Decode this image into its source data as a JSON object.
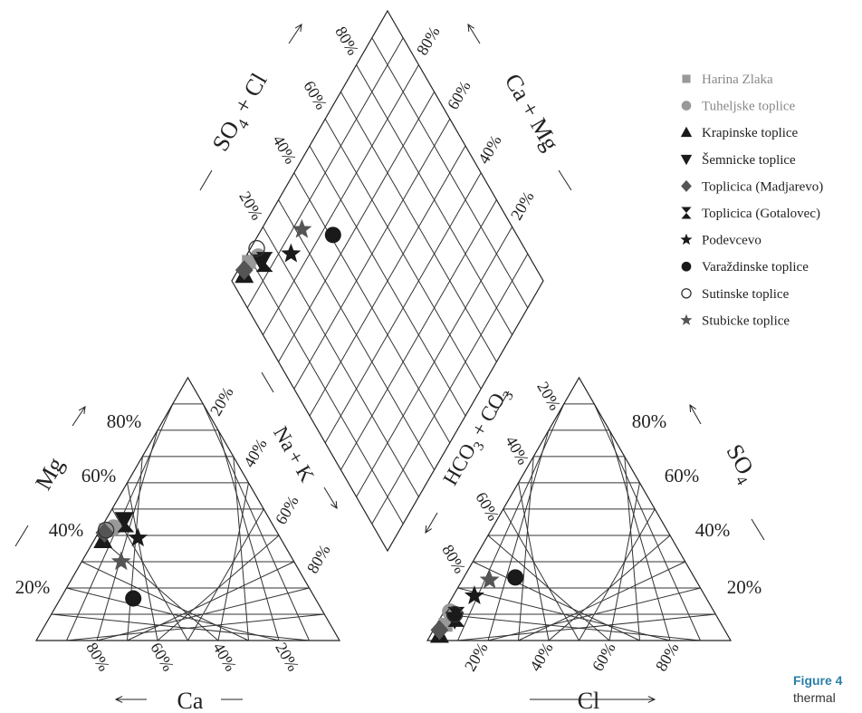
{
  "chart_data": {
    "type": "scatter",
    "title": "",
    "diagram": "Piper trilinear diagram",
    "cation_triangle": {
      "axes": [
        "Mg",
        "Ca",
        "Na + K"
      ],
      "tick_labels_mg": [
        "80%",
        "60%",
        "40%",
        "20%"
      ],
      "tick_labels_ca": [
        "80%",
        "60%",
        "40%",
        "20%"
      ],
      "tick_labels_nak": [
        "20%",
        "40%",
        "60%",
        "80%"
      ]
    },
    "anion_triangle": {
      "axes": [
        "SO4",
        "Cl",
        "HCO3 + CO3"
      ],
      "tick_labels_so4": [
        "80%",
        "60%",
        "40%",
        "20%"
      ],
      "tick_labels_cl": [
        "20%",
        "40%",
        "60%",
        "80%"
      ],
      "tick_labels_hco3": [
        "20%",
        "40%",
        "60%",
        "80%"
      ]
    },
    "diamond": {
      "axes": [
        "SO4 + Cl",
        "Ca + Mg"
      ],
      "tick_labels_so4cl": [
        "80%",
        "60%",
        "40%",
        "20%"
      ],
      "tick_labels_camg": [
        "80%",
        "60%",
        "40%",
        "20%"
      ]
    },
    "axis_text": {
      "mg": "Mg",
      "ca": "Ca",
      "nak_na": "Na",
      "nak_plus": "+ K",
      "cl": "Cl",
      "so4": "SO",
      "so4_sub": "4",
      "hco3_a": "HCO",
      "hco3_sub1": "3",
      "hco3_b": " + CO",
      "hco3_sub2": "3",
      "so4cl_a": "SO",
      "so4cl_sub": "4",
      "so4cl_b": " + Cl",
      "camg": "Ca + Mg"
    },
    "series": [
      {
        "name": "Harina Zlaka",
        "marker": "square",
        "color": "#999999",
        "cation": {
          "mg": 0.42,
          "ca": 0.56,
          "nak": 0.02
        },
        "anion": {
          "so4": 0.06,
          "cl": 0.03,
          "hco3": 0.91
        }
      },
      {
        "name": "Tuheljske toplice",
        "marker": "circle",
        "color": "#999999",
        "cation": {
          "mg": 0.43,
          "ca": 0.53,
          "nak": 0.04
        },
        "anion": {
          "so4": 0.11,
          "cl": 0.02,
          "hco3": 0.87
        }
      },
      {
        "name": "Krapinske toplice",
        "marker": "triangle-up",
        "color": "#1a1a1a",
        "cation": {
          "mg": 0.38,
          "ca": 0.59,
          "nak": 0.03
        },
        "anion": {
          "so4": 0.02,
          "cl": 0.03,
          "hco3": 0.95
        }
      },
      {
        "name": "Šemnicke toplice",
        "marker": "triangle-down",
        "color": "#1a1a1a",
        "cation": {
          "mg": 0.46,
          "ca": 0.48,
          "nak": 0.06
        },
        "anion": {
          "so4": 0.08,
          "cl": 0.05,
          "hco3": 0.87
        }
      },
      {
        "name": "Toplicica (Madjarevo)",
        "marker": "diamond",
        "color": "#555555",
        "cation": {
          "mg": 0.41,
          "ca": 0.57,
          "nak": 0.02
        },
        "anion": {
          "so4": 0.04,
          "cl": 0.02,
          "hco3": 0.94
        }
      },
      {
        "name": "Toplicica (Gotalovec)",
        "marker": "hourglass",
        "color": "#1a1a1a",
        "cation": {
          "mg": 0.45,
          "ca": 0.48,
          "nak": 0.07
        },
        "anion": {
          "so4": 0.09,
          "cl": 0.05,
          "hco3": 0.86
        }
      },
      {
        "name": "Podevcevo",
        "marker": "star",
        "color": "#1a1a1a",
        "cation": {
          "mg": 0.39,
          "ca": 0.47,
          "nak": 0.14
        },
        "anion": {
          "so4": 0.17,
          "cl": 0.07,
          "hco3": 0.76
        }
      },
      {
        "name": "Varaždinske toplice",
        "marker": "filled-circle",
        "color": "#1a1a1a",
        "cation": {
          "mg": 0.16,
          "ca": 0.6,
          "nak": 0.24
        },
        "anion": {
          "so4": 0.24,
          "cl": 0.17,
          "hco3": 0.59
        }
      },
      {
        "name": "Sutinske toplice",
        "marker": "open-circle",
        "color": "#333333",
        "cation": {
          "mg": 0.42,
          "ca": 0.56,
          "nak": 0.02
        },
        "anion": {
          "so4": 0.1,
          "cl": 0.04,
          "hco3": 0.86
        }
      },
      {
        "name": "Stubicke toplice",
        "marker": "star",
        "color": "#555555",
        "cation": {
          "mg": 0.3,
          "ca": 0.57,
          "nak": 0.13
        },
        "anion": {
          "so4": 0.23,
          "cl": 0.09,
          "hco3": 0.68
        }
      }
    ],
    "legend_position": "top-right"
  },
  "caption": {
    "figure_label": "Figure 4",
    "text": "thermal"
  }
}
